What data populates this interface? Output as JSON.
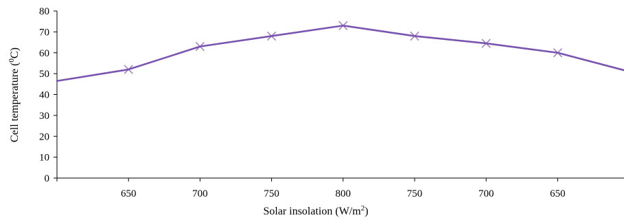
{
  "chart_data": {
    "type": "line",
    "categories": [
      "",
      "650",
      "700",
      "750",
      "800",
      "750",
      "700",
      "650",
      ""
    ],
    "x_positions": [
      0,
      1,
      2,
      3,
      4,
      5,
      6,
      7,
      8
    ],
    "xlabel_main": "Solar insolation (W/m",
    "xlabel_sup": "2",
    "xlabel_tail": ")",
    "ylabel_main": "Cell temperature (",
    "ylabel_sup": "0",
    "ylabel_tail": "C)",
    "ylim": [
      0,
      80
    ],
    "yticks": [
      0,
      10,
      20,
      30,
      40,
      50,
      60,
      70,
      80
    ],
    "grid": false,
    "series": [
      {
        "color": "#7a55b0",
        "marker": "none",
        "values": [
          46.5,
          52,
          63,
          68,
          73,
          68,
          64.5,
          60,
          51
        ]
      },
      {
        "color": "#d0302f",
        "marker": "x",
        "values": [
          46.5,
          52,
          63,
          68,
          73,
          68,
          64.5,
          60,
          51
        ]
      },
      {
        "color": "#9a8fc8",
        "marker": "x",
        "values": [
          46.5,
          52,
          63,
          68,
          73,
          68,
          64.5,
          60,
          51
        ]
      }
    ]
  }
}
